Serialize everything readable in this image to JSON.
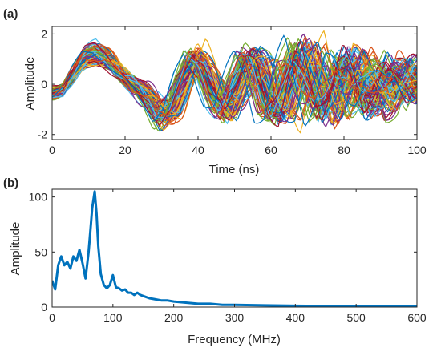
{
  "chart_data": [
    {
      "panel": "(a)",
      "type": "line",
      "xlabel": "Time (ns)",
      "ylabel": "Amplitude",
      "xlim": [
        0,
        100
      ],
      "ylim": [
        -2.2,
        2.3
      ],
      "xticks": [
        0,
        20,
        40,
        60,
        80,
        100
      ],
      "yticks": [
        -2,
        0,
        2
      ],
      "grid": false,
      "legend": "none",
      "series_count": 100,
      "ensemble_mean": {
        "x": [
          0,
          3,
          6,
          9,
          12,
          15,
          18,
          21,
          24,
          27,
          30,
          33,
          36,
          39,
          42,
          45,
          48,
          51,
          54,
          57,
          60,
          63,
          66,
          69,
          72,
          75,
          78,
          81,
          84,
          87,
          90,
          93,
          96,
          99,
          100
        ],
        "y": [
          -0.3,
          -0.2,
          0.4,
          1.0,
          1.2,
          1.0,
          0.5,
          0.1,
          -0.2,
          -0.6,
          -1.2,
          -0.9,
          0.2,
          1.0,
          0.5,
          -0.5,
          -0.9,
          0.0,
          0.9,
          0.6,
          -0.8,
          -1.0,
          0.4,
          1.2,
          0.1,
          -1.0,
          -0.3,
          0.9,
          0.4,
          -0.7,
          -0.4,
          0.5,
          0.3,
          -0.2,
          0.0
        ]
      },
      "colors": [
        "#0072BD",
        "#D95319",
        "#EDB120",
        "#7E2F8E",
        "#77AC30",
        "#4DBEEE",
        "#A2142F"
      ]
    },
    {
      "panel": "(b)",
      "type": "line",
      "xlabel": "Frequency (MHz)",
      "ylabel": "Amplitude",
      "xlim": [
        0,
        600
      ],
      "ylim": [
        0,
        107
      ],
      "xticks": [
        0,
        100,
        200,
        300,
        400,
        500,
        600
      ],
      "yticks": [
        0,
        50,
        100
      ],
      "grid": false,
      "legend": "none",
      "color": "#0072BD",
      "x": [
        0,
        5,
        10,
        15,
        20,
        25,
        30,
        35,
        40,
        45,
        50,
        55,
        60,
        63,
        66,
        70,
        73,
        76,
        80,
        85,
        90,
        95,
        100,
        105,
        110,
        115,
        120,
        125,
        130,
        135,
        140,
        145,
        150,
        160,
        170,
        180,
        190,
        200,
        220,
        240,
        260,
        280,
        300,
        350,
        400,
        450,
        500,
        550,
        600
      ],
      "y": [
        24,
        16,
        38,
        46,
        38,
        41,
        35,
        46,
        42,
        52,
        40,
        26,
        50,
        70,
        90,
        105,
        85,
        55,
        30,
        20,
        17,
        20,
        29,
        18,
        17,
        15,
        16,
        13,
        13,
        11,
        13,
        11,
        10,
        8,
        7,
        6,
        6,
        5,
        4,
        3,
        3,
        2,
        2,
        1.5,
        1.2,
        1.0,
        0.8,
        0.6,
        0.5
      ]
    }
  ]
}
